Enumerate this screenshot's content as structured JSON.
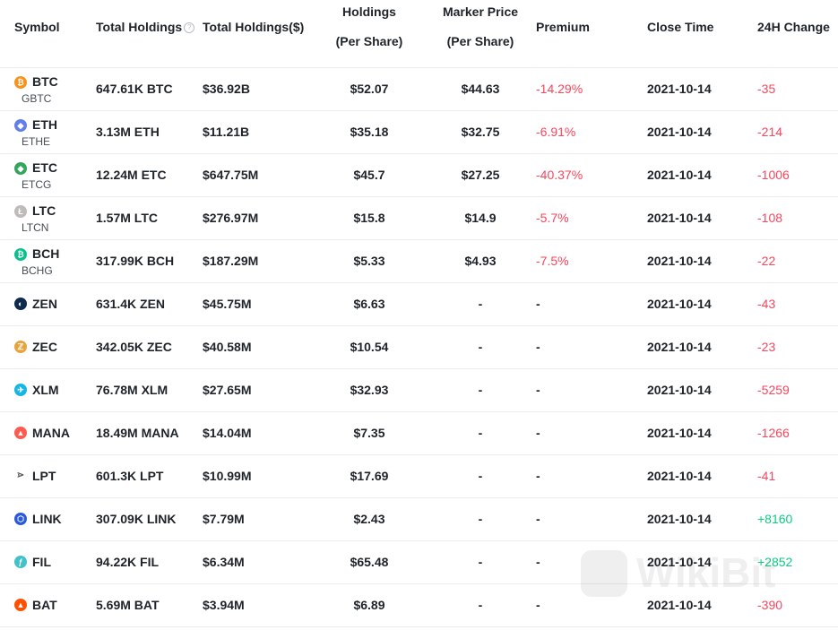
{
  "header": {
    "symbol": "Symbol",
    "total_holdings": "Total Holdings",
    "total_holdings_usd": "Total Holdings($)",
    "holdings_l1": "Holdings",
    "holdings_l2": "(Per Share)",
    "marker_l1": "Marker Price",
    "marker_l2": "(Per Share)",
    "premium": "Premium",
    "close_time": "Close Time",
    "change_24h": "24H Change",
    "help_glyph": "?"
  },
  "rows": [
    {
      "symbol": "BTC",
      "sub": "GBTC",
      "icon": "bitcoin-icon",
      "color": "#f7931a",
      "glyph": "₿",
      "holdings": "647.61K BTC",
      "usd": "$36.92B",
      "per_share": "$52.07",
      "market": "$44.63",
      "premium": "-14.29%",
      "close": "2021-10-14",
      "change": "-35",
      "change_dir": "neg"
    },
    {
      "symbol": "ETH",
      "sub": "ETHE",
      "icon": "ethereum-icon",
      "color": "#627eea",
      "glyph": "◆",
      "holdings": "3.13M ETH",
      "usd": "$11.21B",
      "per_share": "$35.18",
      "market": "$32.75",
      "premium": "-6.91%",
      "close": "2021-10-14",
      "change": "-214",
      "change_dir": "neg"
    },
    {
      "symbol": "ETC",
      "sub": "ETCG",
      "icon": "ethereum-classic-icon",
      "color": "#33a55d",
      "glyph": "◆",
      "holdings": "12.24M ETC",
      "usd": "$647.75M",
      "per_share": "$45.7",
      "market": "$27.25",
      "premium": "-40.37%",
      "close": "2021-10-14",
      "change": "-1006",
      "change_dir": "neg"
    },
    {
      "symbol": "LTC",
      "sub": "LTCN",
      "icon": "litecoin-icon",
      "color": "#bfbbbb",
      "glyph": "Ł",
      "holdings": "1.57M LTC",
      "usd": "$276.97M",
      "per_share": "$15.8",
      "market": "$14.9",
      "premium": "-5.7%",
      "close": "2021-10-14",
      "change": "-108",
      "change_dir": "neg"
    },
    {
      "symbol": "BCH",
      "sub": "BCHG",
      "icon": "bitcoin-cash-icon",
      "color": "#0ac18e",
      "glyph": "₿",
      "holdings": "317.99K BCH",
      "usd": "$187.29M",
      "per_share": "$5.33",
      "market": "$4.93",
      "premium": "-7.5%",
      "close": "2021-10-14",
      "change": "-22",
      "change_dir": "neg"
    },
    {
      "symbol": "ZEN",
      "sub": "",
      "icon": "horizen-icon",
      "color": "#0e2b4d",
      "glyph": "◐",
      "holdings": "631.4K ZEN",
      "usd": "$45.75M",
      "per_share": "$6.63",
      "market": "-",
      "premium": "-",
      "close": "2021-10-14",
      "change": "-43",
      "change_dir": "neg"
    },
    {
      "symbol": "ZEC",
      "sub": "",
      "icon": "zcash-icon",
      "color": "#e8a33d",
      "glyph": "ℤ",
      "holdings": "342.05K ZEC",
      "usd": "$40.58M",
      "per_share": "$10.54",
      "market": "-",
      "premium": "-",
      "close": "2021-10-14",
      "change": "-23",
      "change_dir": "neg"
    },
    {
      "symbol": "XLM",
      "sub": "",
      "icon": "stellar-icon",
      "color": "#14b6e7",
      "glyph": "✈",
      "holdings": "76.78M XLM",
      "usd": "$27.65M",
      "per_share": "$32.93",
      "market": "-",
      "premium": "-",
      "close": "2021-10-14",
      "change": "-5259",
      "change_dir": "neg"
    },
    {
      "symbol": "MANA",
      "sub": "",
      "icon": "decentraland-icon",
      "color": "#ff5a4f",
      "glyph": "▲",
      "holdings": "18.49M MANA",
      "usd": "$14.04M",
      "per_share": "$7.35",
      "market": "-",
      "premium": "-",
      "close": "2021-10-14",
      "change": "-1266",
      "change_dir": "neg"
    },
    {
      "symbol": "LPT",
      "sub": "",
      "icon": "livepeer-icon",
      "color": "#ffffff",
      "glyph": "⋗",
      "holdings": "601.3K LPT",
      "usd": "$10.99M",
      "per_share": "$17.69",
      "market": "-",
      "premium": "-",
      "close": "2021-10-14",
      "change": "-41",
      "change_dir": "neg"
    },
    {
      "symbol": "LINK",
      "sub": "",
      "icon": "chainlink-icon",
      "color": "#2a5ada",
      "glyph": "⬡",
      "holdings": "307.09K LINK",
      "usd": "$7.79M",
      "per_share": "$2.43",
      "market": "-",
      "premium": "-",
      "close": "2021-10-14",
      "change": "+8160",
      "change_dir": "pos"
    },
    {
      "symbol": "FIL",
      "sub": "",
      "icon": "filecoin-icon",
      "color": "#42c1ca",
      "glyph": "ƒ",
      "holdings": "94.22K FIL",
      "usd": "$6.34M",
      "per_share": "$65.48",
      "market": "-",
      "premium": "-",
      "close": "2021-10-14",
      "change": "+2852",
      "change_dir": "pos"
    },
    {
      "symbol": "BAT",
      "sub": "",
      "icon": "basic-attention-token-icon",
      "color": "#ff5000",
      "glyph": "▲",
      "holdings": "5.69M BAT",
      "usd": "$3.94M",
      "per_share": "$6.89",
      "market": "-",
      "premium": "-",
      "close": "2021-10-14",
      "change": "-390",
      "change_dir": "neg"
    }
  ],
  "watermark": {
    "text": "WikiBit"
  }
}
